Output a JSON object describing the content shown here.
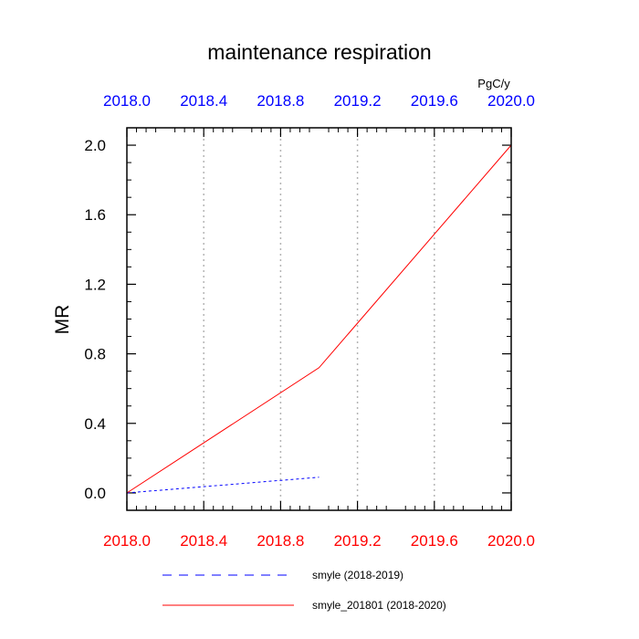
{
  "chart_data": {
    "type": "line",
    "title": "maintenance respiration",
    "units": "PgC/y",
    "ylabel": "MR",
    "xlabel": "",
    "xlim": [
      2018.0,
      2020.0
    ],
    "ylim": [
      -0.1,
      2.1
    ],
    "x_ticks": [
      "2018.0",
      "2018.4",
      "2018.8",
      "2019.2",
      "2019.6",
      "2020.0"
    ],
    "x_tick_values": [
      2018.0,
      2018.4,
      2018.8,
      2019.2,
      2019.6,
      2020.0
    ],
    "y_ticks": [
      "0.0",
      "0.4",
      "0.8",
      "1.2",
      "1.6",
      "2.0"
    ],
    "y_tick_values": [
      0.0,
      0.4,
      0.8,
      1.2,
      1.6,
      2.0
    ],
    "grid": "vertical dotted",
    "legend_position": "bottom",
    "top_axis_color": "#0000ff",
    "bottom_axis_color": "#ff0000",
    "series": [
      {
        "name": "smyle (2018-2019)",
        "x": [
          2018.0,
          2019.0
        ],
        "y": [
          0.0,
          0.09
        ],
        "color": "#0000ff",
        "dash": "dashed"
      },
      {
        "name": "smyle_201801 (2018-2020)",
        "x": [
          2018.0,
          2019.0,
          2020.0
        ],
        "y": [
          0.0,
          0.72,
          2.0
        ],
        "color": "#ff0000",
        "dash": "solid"
      }
    ]
  }
}
